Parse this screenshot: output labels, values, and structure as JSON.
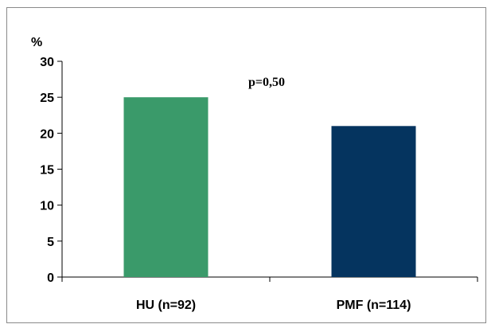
{
  "chart_data": {
    "type": "bar",
    "categories": [
      "HU (n=92)",
      "PMF (n=114)"
    ],
    "values": [
      25,
      21
    ],
    "colors": [
      "#3a9a6a",
      "#05345f"
    ],
    "ylabel": "%",
    "ylim": [
      0,
      30
    ],
    "yticks": [
      0,
      5,
      10,
      15,
      20,
      25,
      30
    ],
    "annotation": "p=0,50",
    "grid": false,
    "legend": "none"
  }
}
